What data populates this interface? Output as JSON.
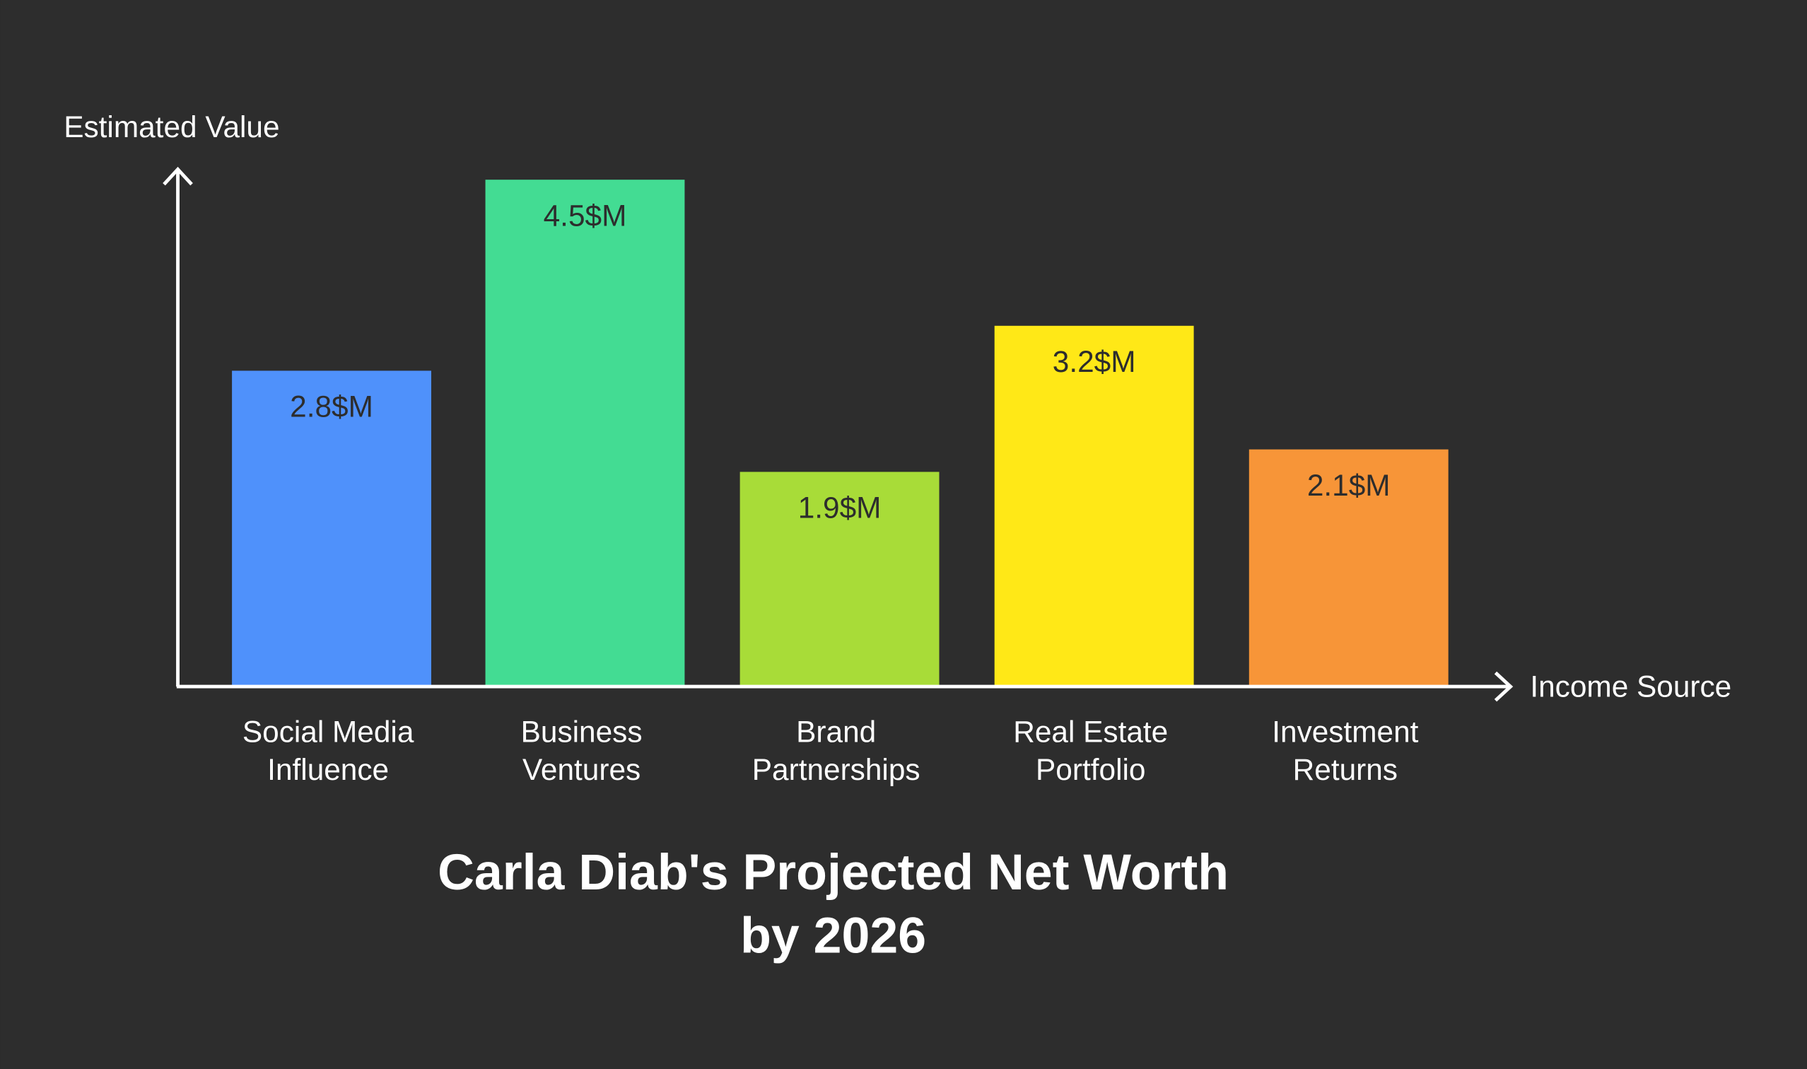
{
  "chart_data": {
    "type": "bar",
    "title": [
      "Carla Diab's Projected Net Worth",
      "by 2026"
    ],
    "xlabel": "Income Source",
    "ylabel": "Estimated Value",
    "categories": [
      [
        "Social Media",
        "Influence"
      ],
      [
        "Business",
        "Ventures"
      ],
      [
        "Brand",
        "Partnerships"
      ],
      [
        "Real Estate",
        "Portfolio"
      ],
      [
        "Investment",
        "Returns"
      ]
    ],
    "values": [
      2.8,
      4.5,
      1.9,
      3.2,
      2.1
    ],
    "data_labels": [
      "2.8$M",
      "4.5$M",
      "1.9$M",
      "3.2$M",
      "2.1$M"
    ],
    "colors": [
      "#4f91fb",
      "#43dc93",
      "#a8dc38",
      "#ffe817",
      "#f79538"
    ],
    "ylim": [
      0,
      4.5
    ],
    "grid": false,
    "legend": "none",
    "background": "#2d2d2d"
  }
}
